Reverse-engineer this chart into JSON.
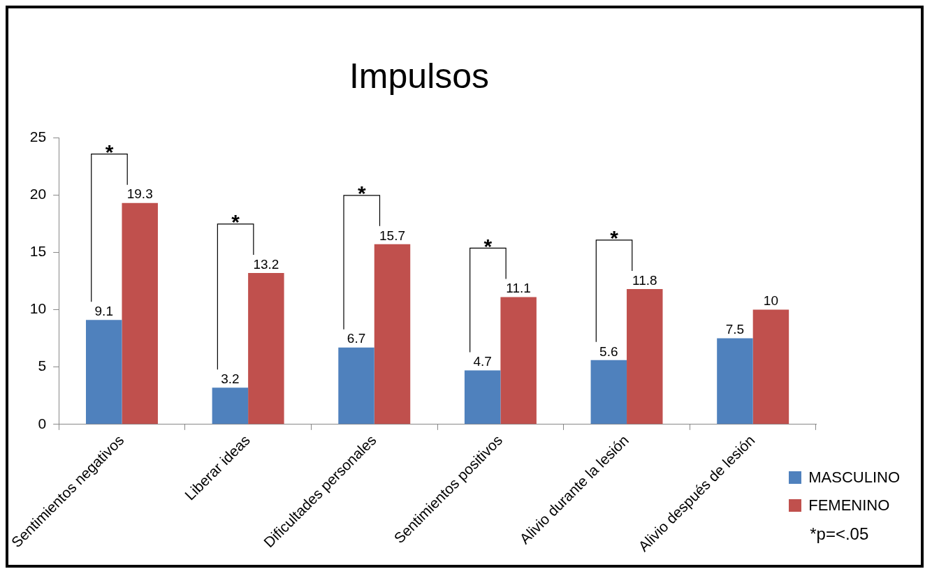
{
  "chart_data": {
    "type": "bar",
    "title": "Impulsos",
    "categories": [
      "Sentimientos negativos",
      "Liberar ideas",
      "Dificultades personales",
      "Sentimientos positivos",
      "Alivio durante la lesión",
      "Alivio después de lesión"
    ],
    "series": [
      {
        "name": "MASCULINO",
        "color": "#4f81bd",
        "values": [
          9.1,
          3.2,
          6.7,
          4.7,
          5.6,
          7.5
        ]
      },
      {
        "name": "FEMENINO",
        "color": "#c0504d",
        "values": [
          19.3,
          13.2,
          15.7,
          11.1,
          11.8,
          10
        ]
      }
    ],
    "ylim": [
      0,
      25
    ],
    "yticks": [
      0,
      5,
      10,
      15,
      20,
      25
    ],
    "data_labels": true,
    "legend": "bottom right",
    "annotations": [
      "*",
      "*",
      "*",
      "*",
      "*",
      "*p=<.05"
    ]
  }
}
